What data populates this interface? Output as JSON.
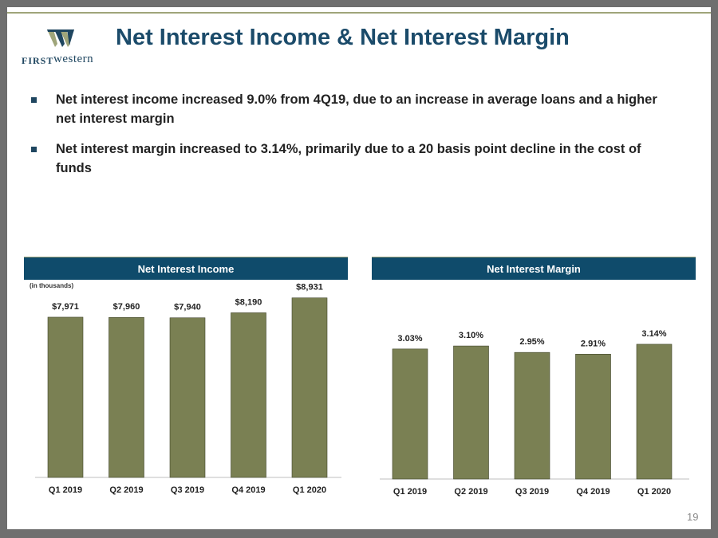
{
  "logo": {
    "first": "FIRST",
    "western": "western"
  },
  "title": "Net Interest Income & Net Interest Margin",
  "bullets": [
    "Net interest income increased 9.0% from 4Q19, due to an increase in average loans and a higher net interest margin",
    "Net interest margin increased to 3.14%, primarily due to a 20 basis point decline in the cost of funds"
  ],
  "colors": {
    "bar": "#7a8053",
    "header": "#0f4b6b",
    "accent": "#9fa57a"
  },
  "chart_data": [
    {
      "type": "bar",
      "title": "Net Interest Income",
      "note": "(in thousands)",
      "categories": [
        "Q1 2019",
        "Q2 2019",
        "Q3 2019",
        "Q4 2019",
        "Q1 2020"
      ],
      "values": [
        7971,
        7960,
        7940,
        8190,
        8931
      ],
      "labels": [
        "$7,971",
        "$7,960",
        "$7,940",
        "$8,190",
        "$8,931"
      ],
      "ylim": [
        0,
        9000
      ]
    },
    {
      "type": "bar",
      "title": "Net Interest Margin",
      "categories": [
        "Q1 2019",
        "Q2 2019",
        "Q3 2019",
        "Q4 2019",
        "Q1 2020"
      ],
      "values": [
        3.03,
        3.1,
        2.95,
        2.91,
        3.14
      ],
      "labels": [
        "3.03%",
        "3.10%",
        "2.95%",
        "2.91%",
        "3.14%"
      ],
      "ylim": [
        0,
        3.25
      ]
    }
  ],
  "page_number": "19"
}
